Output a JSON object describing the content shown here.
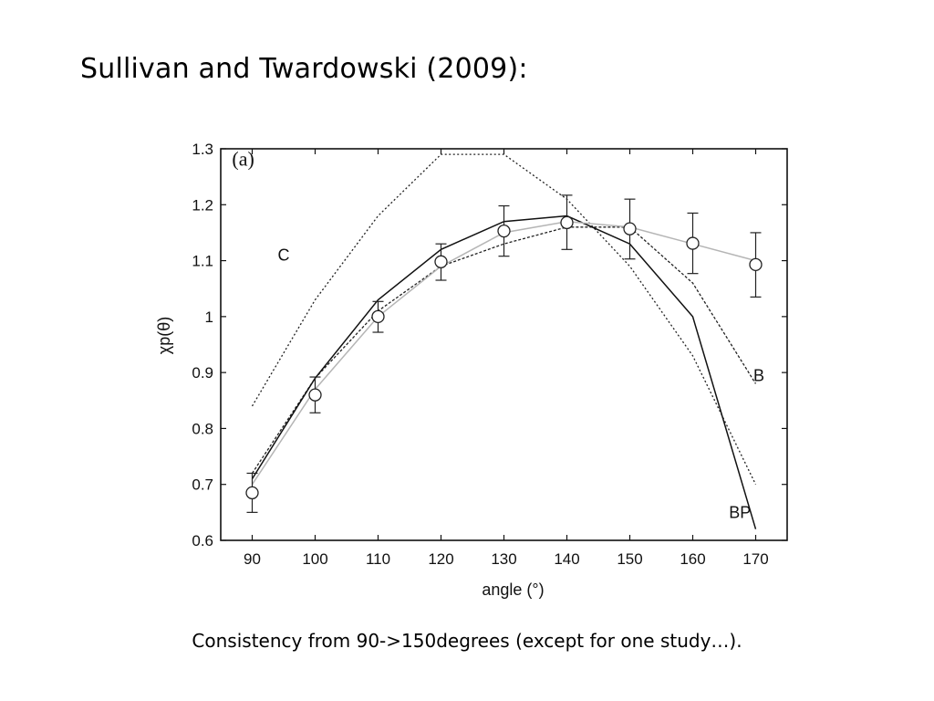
{
  "slide": {
    "title": "Sullivan and Twardowski (2009):",
    "caption": "Consistency from 90->150degrees (except for one study…)."
  },
  "chart_data": {
    "type": "line",
    "panel_label": "(a)",
    "xlabel": "angle (°)",
    "ylabel": "χp(θ)",
    "xlim": [
      85,
      175
    ],
    "ylim": [
      0.6,
      1.3
    ],
    "xticks": [
      90,
      100,
      110,
      120,
      130,
      140,
      150,
      160,
      170
    ],
    "yticks": [
      0.6,
      0.7,
      0.8,
      0.9,
      1,
      1.1,
      1.2,
      1.3
    ],
    "ytick_labels": [
      "0.6",
      "0.7",
      "0.8",
      "0.9",
      "1",
      "1.1",
      "1.2",
      "1.3"
    ],
    "grid": false,
    "series": [
      {
        "name": "C",
        "style": "dotted",
        "color": "#222222",
        "x": [
          90,
          100,
          110,
          120,
          130,
          140,
          150,
          160,
          170
        ],
        "y": [
          0.84,
          1.03,
          1.18,
          1.29,
          1.29,
          1.21,
          1.09,
          0.93,
          0.7
        ]
      },
      {
        "name": "B",
        "style": "dashed",
        "color": "#222222",
        "x": [
          90,
          100,
          110,
          120,
          130,
          140,
          150,
          160,
          170
        ],
        "y": [
          0.72,
          0.89,
          1.01,
          1.09,
          1.13,
          1.16,
          1.16,
          1.06,
          0.88
        ]
      },
      {
        "name": "BP",
        "style": "solid",
        "color": "#111111",
        "x": [
          90,
          100,
          110,
          120,
          130,
          140,
          150,
          160,
          170
        ],
        "y": [
          0.71,
          0.89,
          1.03,
          1.12,
          1.17,
          1.18,
          1.13,
          1.0,
          0.62
        ]
      },
      {
        "name": "",
        "style": "light",
        "color": "#b5b5b5",
        "x": [
          90,
          100,
          110,
          120,
          130,
          140,
          150,
          160,
          170
        ],
        "y": [
          0.7,
          0.87,
          1.0,
          1.09,
          1.15,
          1.17,
          1.16,
          1.13,
          1.1
        ]
      }
    ],
    "measurements": {
      "x": [
        90,
        100,
        110,
        120,
        130,
        140,
        150,
        160,
        170
      ],
      "y": [
        0.685,
        0.86,
        1.0,
        1.098,
        1.153,
        1.168,
        1.157,
        1.131,
        1.093
      ],
      "yerr_low": [
        0.65,
        0.828,
        0.972,
        1.065,
        1.108,
        1.12,
        1.103,
        1.077,
        1.035
      ],
      "yerr_high": [
        0.72,
        0.892,
        1.027,
        1.13,
        1.198,
        1.217,
        1.21,
        1.185,
        1.15
      ]
    },
    "annotations": [
      {
        "text": "C",
        "x": 95,
        "y": 1.1
      },
      {
        "text": "B",
        "x": 170.5,
        "y": 0.885
      },
      {
        "text": "BP",
        "x": 167.5,
        "y": 0.64
      }
    ]
  }
}
